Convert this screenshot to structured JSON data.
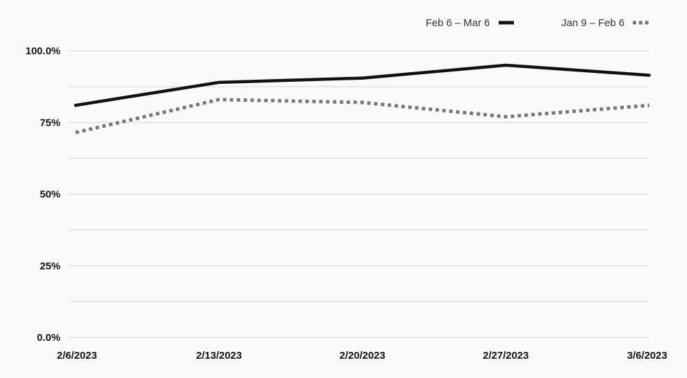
{
  "chart_data": {
    "type": "line",
    "x": [
      "2/6/2023",
      "2/13/2023",
      "2/20/2023",
      "2/27/2023",
      "3/6/2023"
    ],
    "y_ticks": [
      {
        "value": 0,
        "label": "0.0%"
      },
      {
        "value": 25,
        "label": "25%"
      },
      {
        "value": 50,
        "label": "50%"
      },
      {
        "value": 75,
        "label": "75%"
      },
      {
        "value": 100,
        "label": "100.0%"
      }
    ],
    "ylim": [
      0,
      100
    ],
    "grid": true,
    "legend_position": "top-right",
    "series": [
      {
        "name": "Feb 6 – Mar 6",
        "values": [
          81,
          89,
          90.5,
          95,
          91.5
        ],
        "color": "#111111",
        "style": "solid"
      },
      {
        "name": "Jan 9 – Feb 6",
        "values": [
          71.5,
          83,
          82,
          77,
          81
        ],
        "color": "#777777",
        "style": "dotted"
      }
    ],
    "title": "",
    "xlabel": "",
    "ylabel": ""
  }
}
